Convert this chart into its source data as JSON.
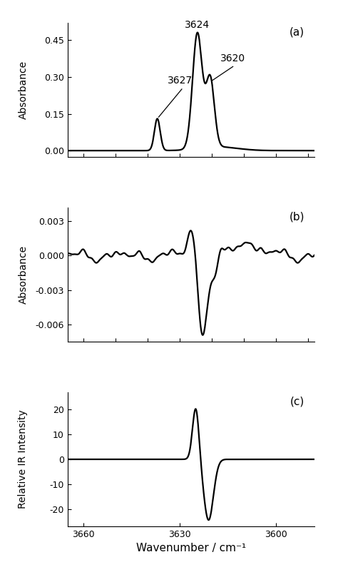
{
  "xmin": 3588,
  "xmax": 3665,
  "panel_a": {
    "ylabel": "Absorbance",
    "ylim": [
      -0.025,
      0.52
    ],
    "yticks": [
      0.0,
      0.15,
      0.3,
      0.45
    ],
    "panel_label": "(a)"
  },
  "panel_b": {
    "ylabel": "Absorbance",
    "ylim": [
      -0.0075,
      0.0042
    ],
    "yticks": [
      -0.006,
      -0.003,
      0.0,
      0.003
    ],
    "panel_label": "(b)"
  },
  "panel_c": {
    "ylabel": "Relative IR Intensity",
    "ylim": [
      -27,
      27
    ],
    "yticks": [
      -20,
      -10,
      0,
      10,
      20
    ],
    "panel_label": "(c)"
  },
  "xlabel": "Wavenumber / cm⁻¹",
  "xticks": [
    3660,
    3630,
    3600
  ],
  "line_color": "#000000",
  "line_width": 1.6,
  "background_color": "#ffffff"
}
